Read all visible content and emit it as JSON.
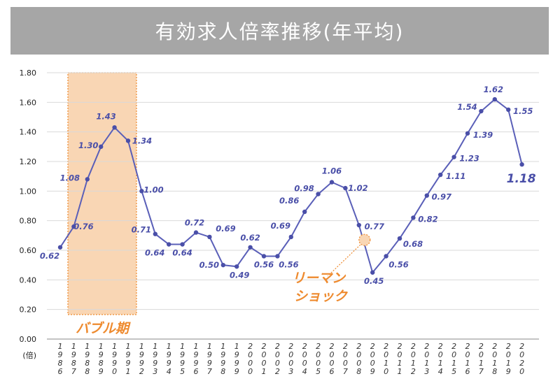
{
  "title": "有効求人倍率推移(年平均)",
  "chart_data": {
    "type": "line",
    "title": "有効求人倍率推移(年平均)",
    "y_unit_label": "(倍)",
    "ylim": [
      0,
      1.8
    ],
    "y_ticks": [
      "0.00",
      "0.20",
      "0.40",
      "0.60",
      "0.80",
      "1.00",
      "1.20",
      "1.40",
      "1.60",
      "1.80"
    ],
    "x": [
      "1986",
      "1987",
      "1988",
      "1989",
      "1990",
      "1991",
      "1992",
      "1993",
      "1994",
      "1995",
      "1996",
      "1997",
      "1998",
      "1999",
      "2000",
      "2001",
      "2002",
      "2003",
      "2004",
      "2005",
      "2006",
      "2007",
      "2008",
      "2009",
      "2010",
      "2011",
      "2012",
      "2013",
      "2014",
      "2015",
      "2016",
      "2017",
      "2018",
      "2019",
      "2020"
    ],
    "values": [
      0.62,
      0.76,
      1.08,
      1.3,
      1.43,
      1.34,
      1.0,
      0.71,
      0.64,
      0.64,
      0.72,
      0.69,
      0.5,
      0.49,
      0.62,
      0.56,
      0.56,
      0.69,
      0.86,
      0.98,
      1.06,
      1.02,
      0.77,
      0.45,
      0.56,
      0.68,
      0.82,
      0.97,
      1.11,
      1.23,
      1.39,
      1.54,
      1.62,
      1.55,
      1.18
    ],
    "labels": [
      "0.62",
      "0.76",
      "1.08",
      "1.30",
      "1.43",
      "1.34",
      "1.00",
      "0.71",
      "0.64",
      "0.64",
      "0.72",
      "0.69",
      "0.50",
      "0.49",
      "0.62",
      "0.56",
      "0.56",
      "0.69",
      "0.86",
      "0.98",
      "1.06",
      "1.02",
      "0.77",
      "0.45",
      "0.56",
      "0.68",
      "0.82",
      "0.97",
      "1.11",
      "1.23",
      "1.39",
      "1.54",
      "1.62",
      "1.55",
      "1.18"
    ],
    "highlight_period": {
      "label": "バブル期",
      "from": "1986",
      "to": "1991"
    },
    "annotation": {
      "line1": "リーマン",
      "line2": "ショック",
      "target": "2008"
    },
    "colors": {
      "line": "#5a5fb8",
      "point": "#4a4fa8",
      "highlight_fill": "#f9d6b4",
      "highlight_border": "#ee8a2e",
      "annotation": "#ee8a2e",
      "title_bg": "#a6a6a6"
    }
  }
}
